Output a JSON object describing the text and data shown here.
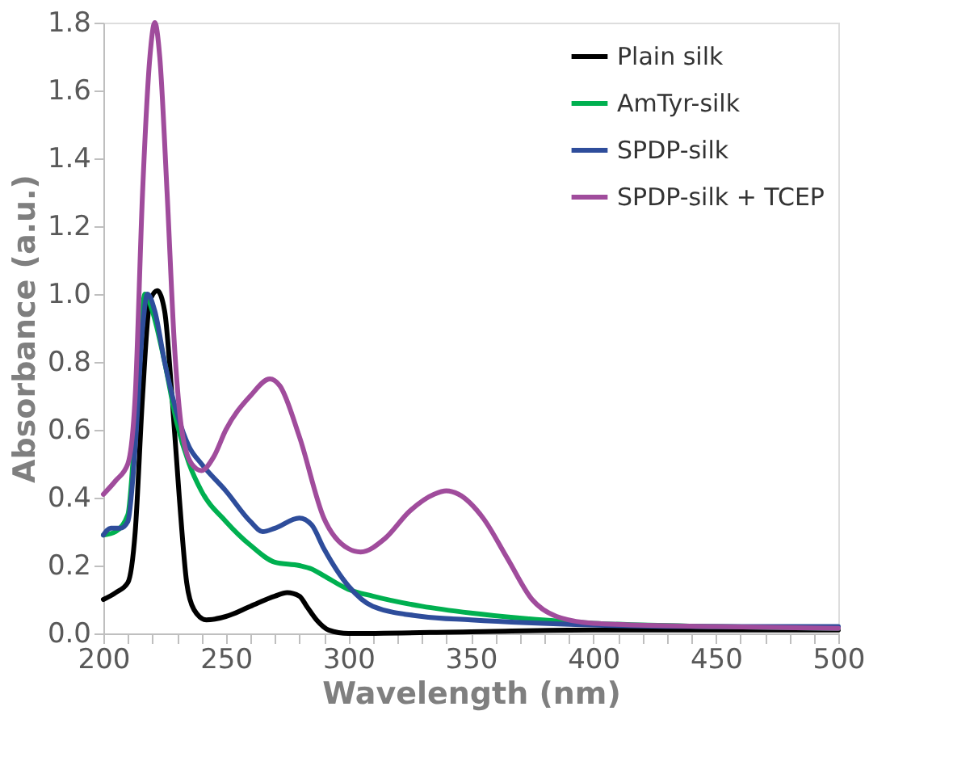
{
  "chart_data": {
    "type": "line",
    "xlabel": "Wavelength (nm)",
    "ylabel": "Absorbance (a.u.)",
    "xlim": [
      200,
      500
    ],
    "xticks": [
      200,
      {
        "value": 210,
        "label": null
      },
      {
        "value": 220,
        "label": null
      },
      {
        "value": 230,
        "label": null
      },
      {
        "value": 240,
        "label": null
      },
      250,
      {
        "value": 260,
        "label": null
      },
      {
        "value": 270,
        "label": null
      },
      {
        "value": 280,
        "label": null
      },
      {
        "value": 290,
        "label": null
      },
      300,
      {
        "value": 310,
        "label": null
      },
      {
        "value": 320,
        "label": null
      },
      {
        "value": 330,
        "label": null
      },
      {
        "value": 340,
        "label": null
      },
      350,
      {
        "value": 360,
        "label": null
      },
      {
        "value": 370,
        "label": null
      },
      {
        "value": 380,
        "label": null
      },
      {
        "value": 390,
        "label": null
      },
      400,
      {
        "value": 410,
        "label": null
      },
      {
        "value": 420,
        "label": null
      },
      {
        "value": 430,
        "label": null
      },
      {
        "value": 440,
        "label": null
      },
      450,
      {
        "value": 460,
        "label": null
      },
      {
        "value": 470,
        "label": null
      },
      {
        "value": 480,
        "label": null
      },
      {
        "value": 490,
        "label": null
      },
      500
    ],
    "ylim": [
      0,
      1.8
    ],
    "yticks": [
      {
        "value": 0,
        "label": "0.0"
      },
      {
        "value": 0.2,
        "label": "0.2"
      },
      {
        "value": 0.4,
        "label": "0.4"
      },
      {
        "value": 0.6,
        "label": "0.6"
      },
      {
        "value": 0.8,
        "label": "0.8"
      },
      {
        "value": 1,
        "label": "1.0"
      },
      {
        "value": 1.2,
        "label": "1.2"
      },
      {
        "value": 1.4,
        "label": "1.4"
      },
      {
        "value": 1.6,
        "label": "1.6"
      },
      {
        "value": 1.8,
        "label": "1.8"
      }
    ],
    "grid": false,
    "legend": "top right",
    "marker": "none",
    "line_style": "solid",
    "series": [
      {
        "name": "Plain silk",
        "color": "#000000",
        "x": [
          200,
          205,
          210,
          213,
          216,
          219,
          222,
          225,
          228,
          231,
          234,
          237,
          242,
          250,
          260,
          270,
          275,
          280,
          283,
          287,
          292,
          300,
          350,
          400,
          450,
          500
        ],
        "values": [
          0.1,
          0.12,
          0.15,
          0.3,
          0.7,
          0.98,
          1.01,
          0.95,
          0.7,
          0.4,
          0.15,
          0.07,
          0.04,
          0.05,
          0.08,
          0.11,
          0.12,
          0.11,
          0.08,
          0.04,
          0.01,
          0.0,
          0.005,
          0.01,
          0.01,
          0.01
        ]
      },
      {
        "name": "AmTyr-silk",
        "color": "#00b050",
        "x": [
          200,
          205,
          210,
          213,
          217,
          220,
          225,
          230,
          235,
          240,
          250,
          260,
          270,
          280,
          285,
          290,
          300,
          310,
          330,
          350,
          370,
          400,
          450,
          500
        ],
        "values": [
          0.29,
          0.3,
          0.35,
          0.6,
          1.0,
          0.95,
          0.8,
          0.62,
          0.5,
          0.42,
          0.33,
          0.26,
          0.21,
          0.2,
          0.19,
          0.17,
          0.13,
          0.11,
          0.08,
          0.06,
          0.045,
          0.03,
          0.02,
          0.015
        ]
      },
      {
        "name": "SPDP-silk",
        "color": "#2e4d9b",
        "x": [
          200,
          203,
          207,
          210,
          213,
          216,
          218,
          221,
          225,
          230,
          235,
          240,
          250,
          260,
          265,
          270,
          280,
          285,
          290,
          300,
          310,
          330,
          350,
          400,
          450,
          500
        ],
        "values": [
          0.29,
          0.31,
          0.31,
          0.33,
          0.55,
          0.9,
          1.0,
          0.95,
          0.8,
          0.65,
          0.55,
          0.5,
          0.42,
          0.33,
          0.3,
          0.31,
          0.34,
          0.32,
          0.25,
          0.14,
          0.08,
          0.05,
          0.04,
          0.025,
          0.02,
          0.02
        ]
      },
      {
        "name": "SPDP-silk + TCEP",
        "color": "#a04c9c",
        "x": [
          200,
          205,
          210,
          213,
          216,
          219,
          221,
          223,
          226,
          229,
          232,
          236,
          240,
          245,
          250,
          260,
          268,
          272,
          280,
          290,
          300,
          305,
          315,
          325,
          335,
          340,
          345,
          355,
          365,
          375,
          385,
          400,
          450,
          500
        ],
        "values": [
          0.41,
          0.45,
          0.5,
          0.7,
          1.3,
          1.7,
          1.8,
          1.7,
          1.3,
          0.85,
          0.6,
          0.5,
          0.48,
          0.52,
          0.6,
          0.7,
          0.75,
          0.73,
          0.58,
          0.34,
          0.25,
          0.24,
          0.28,
          0.36,
          0.41,
          0.42,
          0.41,
          0.34,
          0.22,
          0.1,
          0.05,
          0.03,
          0.02,
          0.015
        ]
      }
    ]
  }
}
